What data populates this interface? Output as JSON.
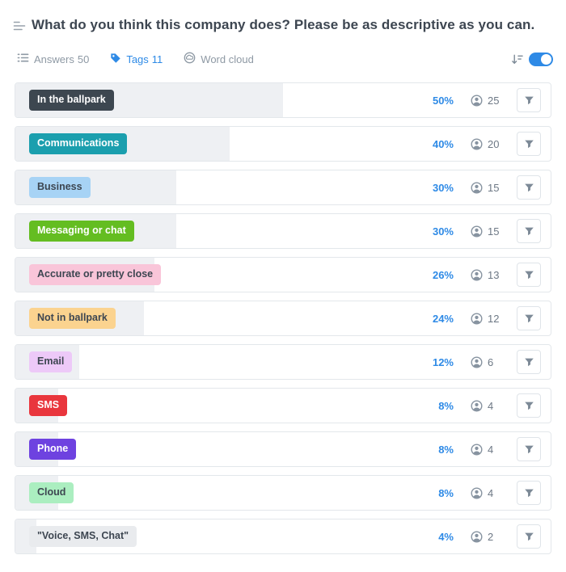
{
  "header": {
    "title": "What do you think this company does? Please be as descriptive as you can."
  },
  "tabs": [
    {
      "label": "Answers",
      "count": "50",
      "active": false,
      "icon": "list-icon"
    },
    {
      "label": "Tags",
      "count": "11",
      "active": true,
      "icon": "tag-icon"
    },
    {
      "label": "Word cloud",
      "count": "",
      "active": false,
      "icon": "word-cloud-icon"
    }
  ],
  "toolbar": {
    "sort_icon": "sort-descending-icon",
    "toggle_on": true
  },
  "colors": {
    "accent_blue": "#2e8ae6",
    "row_fill": "#eef0f3",
    "row_border": "#e3e7eb",
    "muted_text": "#8e99a4",
    "count_text": "#6d7885",
    "title_text": "#3d4651"
  },
  "rows": [
    {
      "tag": "In the ballpark",
      "tag_bg": "#3d4750",
      "tag_color": "#ffffff",
      "pct": 50,
      "percent": "50%",
      "count": "25"
    },
    {
      "tag": "Communications",
      "tag_bg": "#1b9fae",
      "tag_color": "#ffffff",
      "pct": 40,
      "percent": "40%",
      "count": "20"
    },
    {
      "tag": "Business",
      "tag_bg": "#a7d3f5",
      "tag_color": "#3d4651",
      "pct": 30,
      "percent": "30%",
      "count": "15"
    },
    {
      "tag": "Messaging or chat",
      "tag_bg": "#64bd21",
      "tag_color": "#ffffff",
      "pct": 30,
      "percent": "30%",
      "count": "15"
    },
    {
      "tag": "Accurate or pretty close",
      "tag_bg": "#f9c5d9",
      "tag_color": "#3d4651",
      "pct": 26,
      "percent": "26%",
      "count": "13"
    },
    {
      "tag": "Not in ballpark",
      "tag_bg": "#fbd38f",
      "tag_color": "#3d4651",
      "pct": 24,
      "percent": "24%",
      "count": "12"
    },
    {
      "tag": "Email",
      "tag_bg": "#edc9f8",
      "tag_color": "#3d4651",
      "pct": 12,
      "percent": "12%",
      "count": "6"
    },
    {
      "tag": "SMS",
      "tag_bg": "#e9363d",
      "tag_color": "#ffffff",
      "pct": 8,
      "percent": "8%",
      "count": "4"
    },
    {
      "tag": "Phone",
      "tag_bg": "#6e42e0",
      "tag_color": "#ffffff",
      "pct": 8,
      "percent": "8%",
      "count": "4"
    },
    {
      "tag": "Cloud",
      "tag_bg": "#abeec0",
      "tag_color": "#3d4651",
      "pct": 8,
      "percent": "8%",
      "count": "4"
    },
    {
      "tag": "\"Voice, SMS, Chat\"",
      "tag_bg": "#e9ebee",
      "tag_color": "#3d4651",
      "pct": 4,
      "percent": "4%",
      "count": "2"
    }
  ]
}
